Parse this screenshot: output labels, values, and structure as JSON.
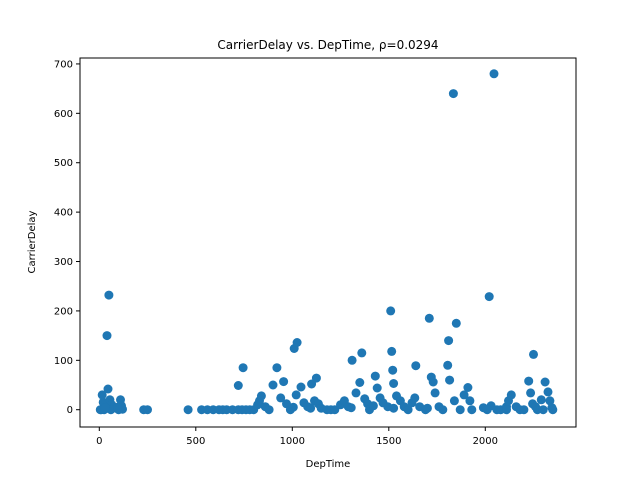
{
  "chart_data": {
    "type": "scatter",
    "title": "CarrierDelay vs. DepTime, ρ=0.0294",
    "xlabel": "DepTime",
    "ylabel": "CarrierDelay",
    "xlim": [
      -100,
      2470
    ],
    "ylim": [
      -35,
      712
    ],
    "xticks": [
      0,
      500,
      1000,
      1500,
      2000
    ],
    "yticks": [
      0,
      100,
      200,
      300,
      400,
      500,
      600,
      700
    ],
    "grid": false,
    "marker_color": "#1f77b4",
    "points": [
      [
        50,
        232
      ],
      [
        40,
        150
      ],
      [
        15,
        30
      ],
      [
        20,
        15
      ],
      [
        35,
        5
      ],
      [
        45,
        42
      ],
      [
        55,
        20
      ],
      [
        65,
        10
      ],
      [
        70,
        3
      ],
      [
        5,
        0
      ],
      [
        25,
        0
      ],
      [
        60,
        0
      ],
      [
        110,
        20
      ],
      [
        115,
        8
      ],
      [
        120,
        1
      ],
      [
        100,
        0
      ],
      [
        230,
        0
      ],
      [
        250,
        0
      ],
      [
        460,
        0
      ],
      [
        530,
        0
      ],
      [
        560,
        0
      ],
      [
        590,
        0
      ],
      [
        620,
        0
      ],
      [
        640,
        0
      ],
      [
        660,
        0
      ],
      [
        690,
        0
      ],
      [
        720,
        49
      ],
      [
        745,
        85
      ],
      [
        720,
        0
      ],
      [
        740,
        0
      ],
      [
        760,
        0
      ],
      [
        780,
        0
      ],
      [
        800,
        0
      ],
      [
        820,
        10
      ],
      [
        830,
        18
      ],
      [
        840,
        28
      ],
      [
        860,
        6
      ],
      [
        880,
        0
      ],
      [
        900,
        50
      ],
      [
        920,
        85
      ],
      [
        940,
        24
      ],
      [
        955,
        57
      ],
      [
        970,
        12
      ],
      [
        990,
        0
      ],
      [
        1010,
        124
      ],
      [
        1025,
        136
      ],
      [
        1020,
        30
      ],
      [
        1045,
        46
      ],
      [
        1060,
        14
      ],
      [
        1080,
        6
      ],
      [
        1100,
        52
      ],
      [
        1115,
        18
      ],
      [
        1125,
        64
      ],
      [
        1135,
        12
      ],
      [
        1150,
        3
      ],
      [
        1180,
        0
      ],
      [
        1200,
        0
      ],
      [
        1220,
        0
      ],
      [
        1250,
        10
      ],
      [
        1270,
        18
      ],
      [
        1290,
        6
      ],
      [
        1310,
        100
      ],
      [
        1330,
        34
      ],
      [
        1350,
        55
      ],
      [
        1360,
        115
      ],
      [
        1375,
        22
      ],
      [
        1390,
        12
      ],
      [
        1400,
        0
      ],
      [
        1420,
        8
      ],
      [
        1430,
        68
      ],
      [
        1440,
        44
      ],
      [
        1455,
        24
      ],
      [
        1470,
        14
      ],
      [
        1510,
        200
      ],
      [
        1515,
        118
      ],
      [
        1520,
        80
      ],
      [
        1525,
        53
      ],
      [
        1540,
        28
      ],
      [
        1560,
        18
      ],
      [
        1580,
        6
      ],
      [
        1600,
        0
      ],
      [
        1620,
        14
      ],
      [
        1635,
        24
      ],
      [
        1640,
        89
      ],
      [
        1660,
        6
      ],
      [
        1690,
        0
      ],
      [
        1710,
        185
      ],
      [
        1720,
        66
      ],
      [
        1730,
        56
      ],
      [
        1740,
        34
      ],
      [
        1760,
        6
      ],
      [
        1780,
        0
      ],
      [
        1805,
        90
      ],
      [
        1810,
        140
      ],
      [
        1815,
        60
      ],
      [
        1835,
        640
      ],
      [
        1850,
        175
      ],
      [
        1840,
        18
      ],
      [
        1870,
        0
      ],
      [
        1890,
        30
      ],
      [
        1910,
        45
      ],
      [
        1920,
        18
      ],
      [
        1930,
        0
      ],
      [
        2020,
        229
      ],
      [
        2030,
        8
      ],
      [
        2045,
        680
      ],
      [
        2060,
        0
      ],
      [
        2080,
        0
      ],
      [
        2110,
        6
      ],
      [
        2120,
        18
      ],
      [
        2135,
        30
      ],
      [
        2160,
        6
      ],
      [
        2180,
        0
      ],
      [
        2200,
        0
      ],
      [
        2225,
        58
      ],
      [
        2235,
        34
      ],
      [
        2245,
        12
      ],
      [
        2250,
        112
      ],
      [
        2270,
        0
      ],
      [
        2290,
        20
      ],
      [
        2310,
        56
      ],
      [
        2325,
        36
      ],
      [
        2335,
        18
      ],
      [
        2345,
        4
      ],
      [
        2350,
        0
      ],
      [
        10,
        0
      ],
      [
        30,
        4
      ],
      [
        95,
        5
      ],
      [
        1005,
        5
      ],
      [
        1095,
        3
      ],
      [
        1305,
        4
      ],
      [
        1495,
        6
      ],
      [
        1525,
        3
      ],
      [
        1700,
        3
      ],
      [
        1990,
        4
      ],
      [
        2010,
        0
      ],
      [
        2110,
        0
      ],
      [
        2260,
        6
      ],
      [
        2300,
        0
      ]
    ]
  }
}
